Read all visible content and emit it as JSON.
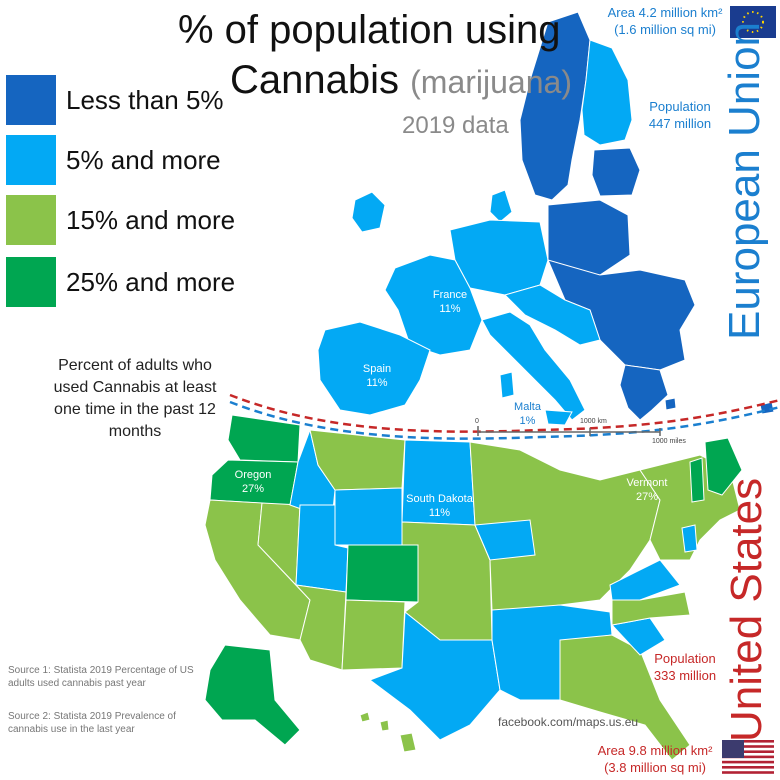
{
  "title": {
    "line1": "% of population using",
    "line2_main": "Cannabis",
    "line2_sub": "(marijuana)",
    "line3": "2019 data"
  },
  "legend": [
    {
      "label": "Less than 5%",
      "color": "#1565c0"
    },
    {
      "label": "5% and more",
      "color": "#03a9f4"
    },
    {
      "label": "15% and more",
      "color": "#8bc34a"
    },
    {
      "label": "25% and more",
      "color": "#00a651"
    }
  ],
  "note": "Percent of adults who used Cannabis at least one time in the past 12 months",
  "eu": {
    "name": "European Union",
    "area_line1": "Area 4.2 million km²",
    "area_line2": "(1.6 million sq mi)",
    "pop_line1": "Population",
    "pop_line2": "447 million"
  },
  "us": {
    "name": "United States",
    "pop_line1": "Population",
    "pop_line2": "333 million",
    "area_line1": "Area 9.8 million km²",
    "area_line2": "(3.8 million sq mi)"
  },
  "map_labels": {
    "france_name": "France",
    "france_value": "11%",
    "spain_name": "Spain",
    "spain_value": "11%",
    "malta_name": "Malta",
    "malta_value": "1%",
    "oregon_name": "Oregon",
    "oregon_value": "27%",
    "sd_name": "South Dakota",
    "sd_value": "11%",
    "vermont_name": "Vermont",
    "vermont_value": "27%"
  },
  "scale": {
    "zero": "0",
    "mid": "1000 km",
    "end": "1000 miles"
  },
  "sources": {
    "s1": "Source 1: Statista 2019 Percentage of US adults used cannabis past year",
    "s2": "Source 2: Statista 2019 Prevalence of cannabis use in the last year"
  },
  "credit": "facebook.com/maps.us.eu",
  "colors": {
    "dark_blue": "#1565c0",
    "light_blue": "#03a9f4",
    "light_green": "#8bc34a",
    "dark_green": "#00a651",
    "eu_text": "#1b7fcf",
    "us_text": "#c62828"
  }
}
